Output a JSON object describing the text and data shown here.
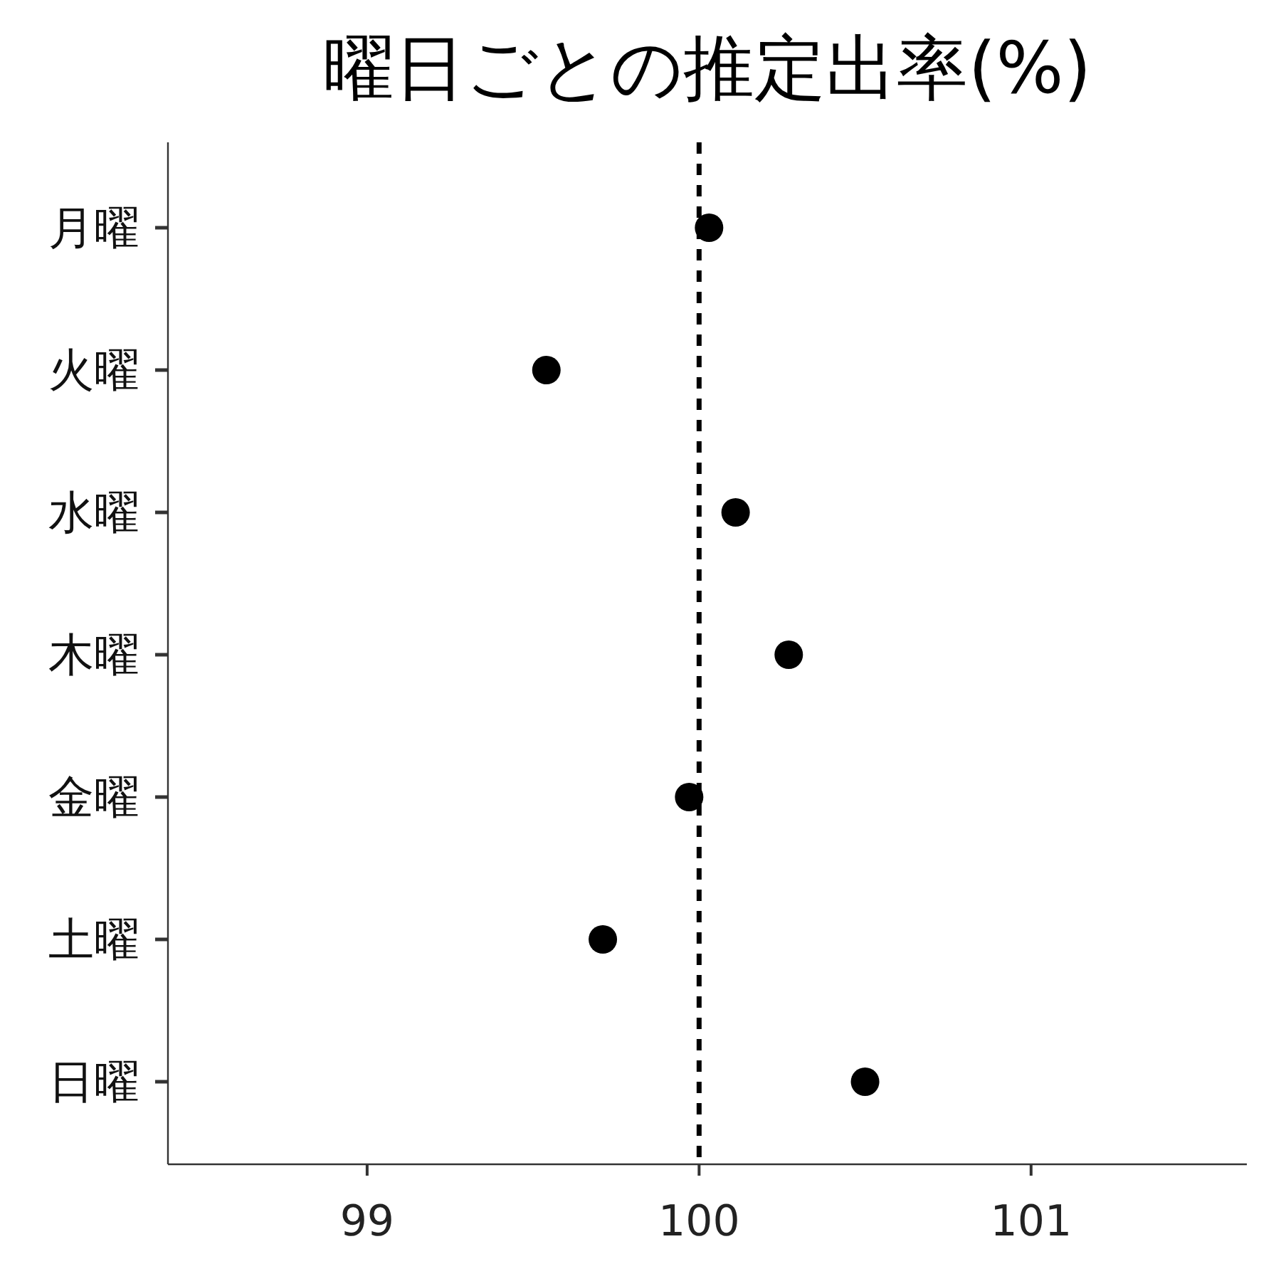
{
  "chart_data": {
    "type": "scatter",
    "title": "曜日ごとの推定出率(%)",
    "orientation": "horizontal",
    "categories": [
      "月曜",
      "火曜",
      "水曜",
      "木曜",
      "金曜",
      "土曜",
      "日曜"
    ],
    "values": [
      100.03,
      99.54,
      100.11,
      100.27,
      99.97,
      99.71,
      100.5
    ],
    "color": "#000000",
    "marker": "circle",
    "xlim": [
      98.4,
      101.65
    ],
    "xticks": [
      99,
      100,
      101
    ],
    "ref_lines": [
      {
        "axis": "x",
        "value": 100,
        "color": "#000000",
        "line_style": "dashed"
      }
    ]
  }
}
